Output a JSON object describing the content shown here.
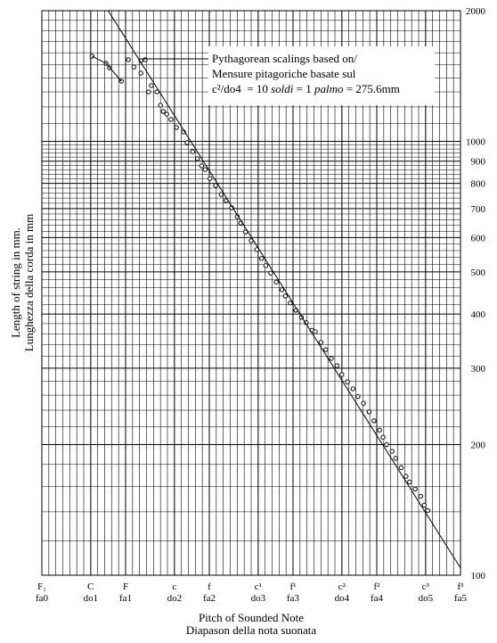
{
  "chart_data": {
    "type": "scatter",
    "y_log": true,
    "ylim": [
      100,
      2000
    ],
    "yticks": [
      100,
      200,
      300,
      400,
      500,
      600,
      700,
      800,
      900,
      1000,
      2000
    ],
    "xlim": [
      0,
      60
    ],
    "xticks": [
      {
        "value": 0,
        "label": "F₁",
        "sublabel": "fa0"
      },
      {
        "value": 7,
        "label": "C",
        "sublabel": "do1"
      },
      {
        "value": 12,
        "label": "F",
        "sublabel": "fa1"
      },
      {
        "value": 19,
        "label": "c",
        "sublabel": "do2"
      },
      {
        "value": 24,
        "label": "f",
        "sublabel": "fa2"
      },
      {
        "value": 31,
        "label": "c¹",
        "sublabel": "do3"
      },
      {
        "value": 36,
        "label": "f¹",
        "sublabel": "fa3"
      },
      {
        "value": 43,
        "label": "c²",
        "sublabel": "do4"
      },
      {
        "value": 48,
        "label": "f²",
        "sublabel": "fa4"
      },
      {
        "value": 55,
        "label": "c³",
        "sublabel": "do5"
      },
      {
        "value": 60,
        "label": "f³",
        "sublabel": "fa5"
      }
    ],
    "xlabel": [
      "Pitch of Sounded Note",
      "Diapason della nota suonata"
    ],
    "ylabel": [
      "Length of string in mm.",
      "Lunghezza della corda in mm"
    ],
    "grid": true,
    "annotation": {
      "lines": [
        "Pythagorean scalings based on/",
        "Mensure pitagoriche basate sul"
      ],
      "formula": [
        "c²/do4  = 10 ",
        "soldi",
        " = 1 ",
        "palmo",
        " = 275.6mm"
      ]
    },
    "series": [
      {
        "style": "markers",
        "color": "#000000",
        "x": [
          7.2,
          9.2,
          9.7,
          11.4,
          12.4,
          13.2,
          14.2,
          14.8,
          14.2,
          15.3,
          15.7,
          16.5,
          17.0,
          17.4,
          17.9,
          18.5,
          19.3,
          20.3,
          20.8,
          21.6,
          22.3,
          22.9,
          23.4,
          24.1,
          24.9,
          25.7,
          26.4,
          27.2,
          28.0,
          28.5,
          29.2,
          30.0,
          30.8,
          31.5,
          32.1,
          32.8,
          33.6,
          34.4,
          34.9,
          35.6,
          36.4,
          37.2,
          37.9,
          38.7,
          39.2,
          40.0,
          40.7,
          41.5,
          42.3,
          43.0,
          43.8,
          44.6,
          45.3,
          46.1,
          46.9,
          47.6,
          48.4,
          48.9,
          49.4,
          50.2,
          50.7,
          51.5,
          52.2,
          52.7,
          53.5,
          54.3,
          54.8,
          55.3
        ],
        "values": [
          1571,
          1513,
          1477,
          1376,
          1542,
          1484,
          1534,
          1542,
          1436,
          1300,
          1344,
          1300,
          1211,
          1172,
          1155,
          1123,
          1076,
          1051,
          993,
          947,
          912,
          878,
          861,
          821,
          791,
          754,
          730,
          703,
          670,
          648,
          618,
          590,
          563,
          537,
          517,
          497,
          474,
          455,
          440,
          424,
          408,
          393,
          382,
          367,
          364,
          344,
          331,
          316,
          304,
          290,
          279,
          269,
          258,
          249,
          238,
          227,
          216,
          208,
          200,
          193,
          186,
          177,
          169,
          164,
          158,
          152,
          145,
          141
        ]
      },
      {
        "style": "line",
        "color": "#000000",
        "x": [
          7.2,
          9.2,
          11.4
        ],
        "values": [
          1571,
          1513,
          1376
        ]
      },
      {
        "style": "line",
        "color": "#000000",
        "x": [
          9.5,
          60
        ],
        "values": [
          2000,
          104
        ]
      }
    ]
  }
}
